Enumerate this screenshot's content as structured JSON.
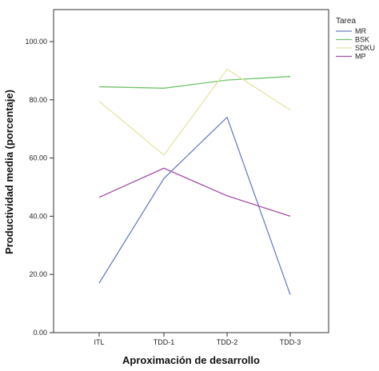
{
  "chart_data": {
    "type": "line",
    "categories": [
      "ITL",
      "TDD-1",
      "TDD-2",
      "TDD-3"
    ],
    "series": [
      {
        "name": "MR",
        "color": "#6a7fc6",
        "values": [
          17.0,
          53.0,
          74.0,
          13.0
        ]
      },
      {
        "name": "BSK",
        "color": "#6fc46c",
        "values": [
          84.5,
          84.0,
          86.8,
          88.0
        ]
      },
      {
        "name": "SDKU",
        "color": "#e7e4a3",
        "values": [
          79.5,
          61.0,
          90.5,
          76.5
        ]
      },
      {
        "name": "MP",
        "color": "#a352a5",
        "values": [
          46.5,
          56.5,
          47.0,
          40.0
        ]
      }
    ],
    "title": "",
    "xlabel": "Aproximación de desarrollo",
    "ylabel": "Productividad media (porcentaje)",
    "ylim": [
      0,
      111
    ],
    "yticks": [
      0,
      20,
      40,
      60,
      80,
      100
    ],
    "ytick_labels": [
      "0.00",
      "20.00",
      "40.00",
      "60.00",
      "80.00",
      "100.00"
    ],
    "legend_title": "Tarea",
    "legend_position": "right",
    "grid": false
  }
}
